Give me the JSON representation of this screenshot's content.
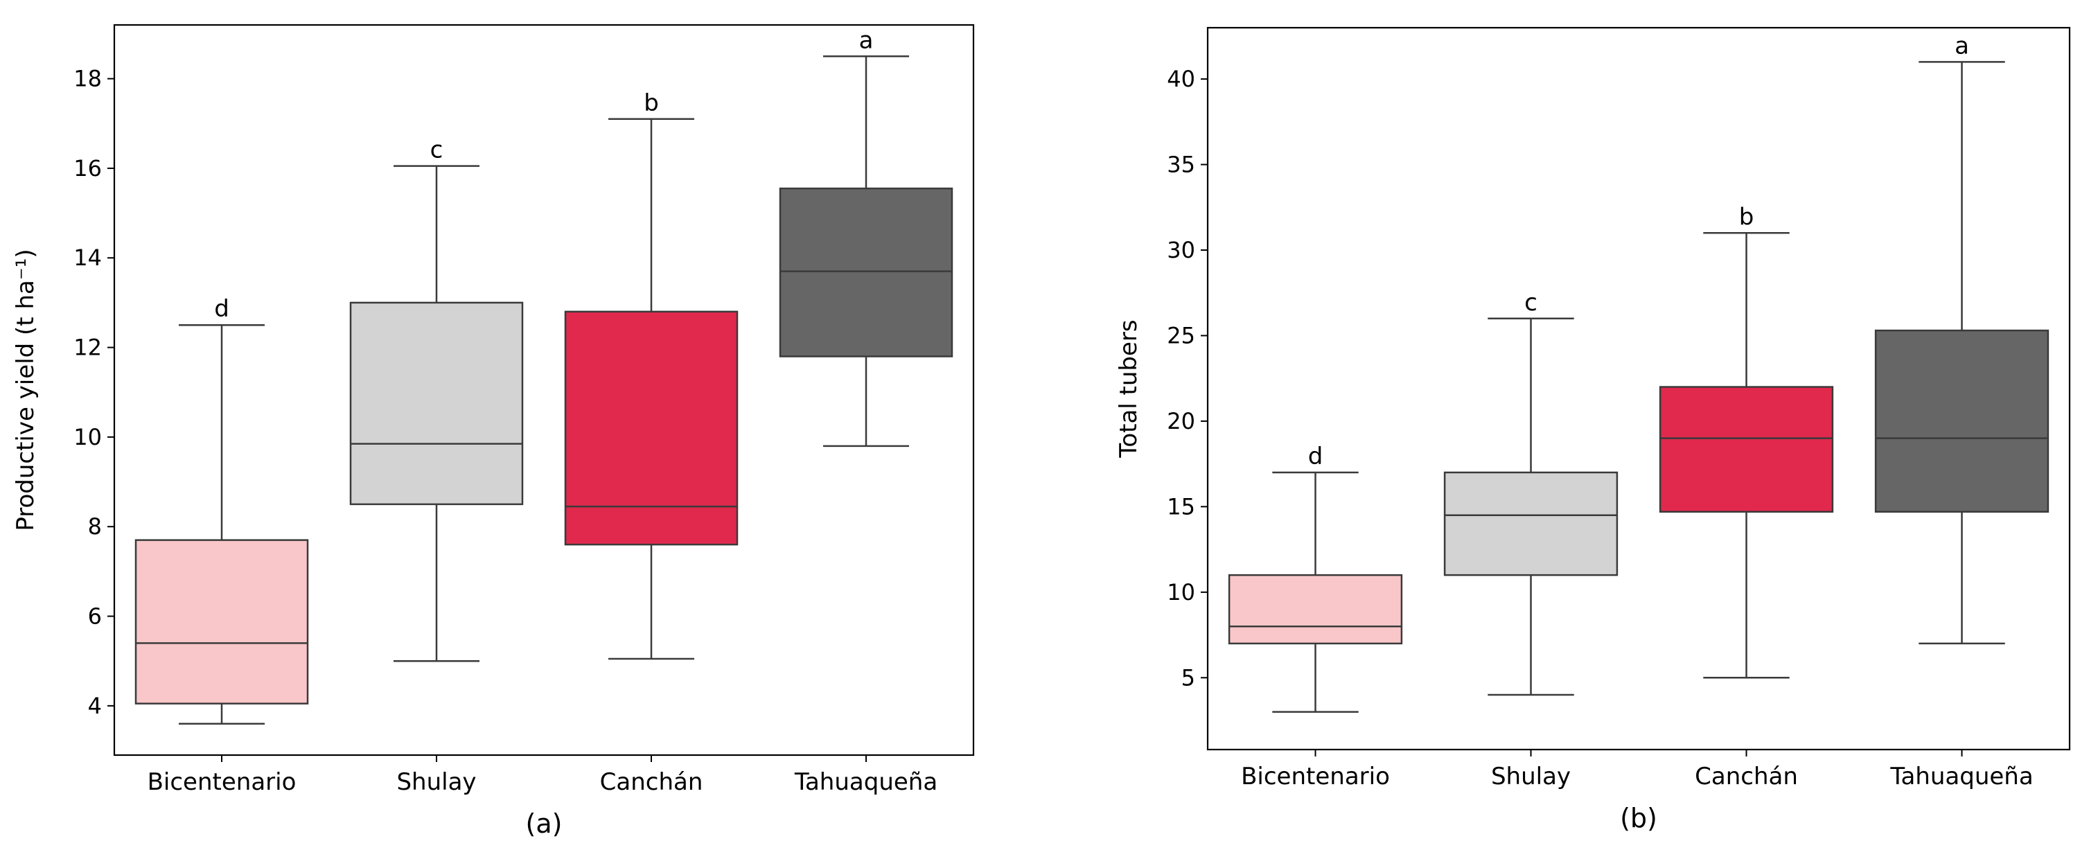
{
  "colors": {
    "Bicentenario": "#f9c7c9",
    "Shulay": "#d3d3d3",
    "Canchán": "#e0294c",
    "Tahuaqueña": "#666666",
    "line": "#3a3a3a"
  },
  "chart_data": [
    {
      "type": "box",
      "panel": "(a)",
      "xlabel": "(a)",
      "ylabel": "Productive yield (t ha⁻¹)",
      "categories": [
        "Bicentenario",
        "Shulay",
        "Canchán",
        "Tahuaqueña"
      ],
      "ylim": [
        2.9,
        19.2
      ],
      "yticks": [
        4,
        6,
        8,
        10,
        12,
        14,
        16,
        18
      ],
      "boxes": [
        {
          "category": "Bicentenario",
          "min": 3.6,
          "q1": 4.05,
          "median": 5.4,
          "q3": 7.7,
          "max": 12.5,
          "letter": "d"
        },
        {
          "category": "Shulay",
          "min": 5.0,
          "q1": 8.5,
          "median": 9.85,
          "q3": 13.0,
          "max": 16.05,
          "letter": "c"
        },
        {
          "category": "Canchán",
          "min": 5.05,
          "q1": 7.6,
          "median": 8.45,
          "q3": 12.8,
          "max": 17.1,
          "letter": "b"
        },
        {
          "category": "Tahuaqueña",
          "min": 9.8,
          "q1": 11.8,
          "median": 13.7,
          "q3": 15.55,
          "max": 18.5,
          "letter": "a"
        }
      ]
    },
    {
      "type": "box",
      "panel": "(b)",
      "xlabel": "(b)",
      "ylabel": "Total tubers",
      "categories": [
        "Bicentenario",
        "Shulay",
        "Canchán",
        "Tahuaqueña"
      ],
      "ylim": [
        0.8,
        43.0
      ],
      "yticks": [
        5,
        10,
        15,
        20,
        25,
        30,
        35,
        40
      ],
      "boxes": [
        {
          "category": "Bicentenario",
          "min": 3,
          "q1": 7,
          "median": 8,
          "q3": 11,
          "max": 17,
          "letter": "d"
        },
        {
          "category": "Shulay",
          "min": 4,
          "q1": 11,
          "median": 14.5,
          "q3": 17,
          "max": 26,
          "letter": "c"
        },
        {
          "category": "Canchán",
          "min": 5,
          "q1": 14.7,
          "median": 19,
          "q3": 22,
          "max": 31,
          "letter": "b"
        },
        {
          "category": "Tahuaqueña",
          "min": 7,
          "q1": 14.7,
          "median": 19,
          "q3": 25.3,
          "max": 41,
          "letter": "a"
        }
      ]
    }
  ]
}
